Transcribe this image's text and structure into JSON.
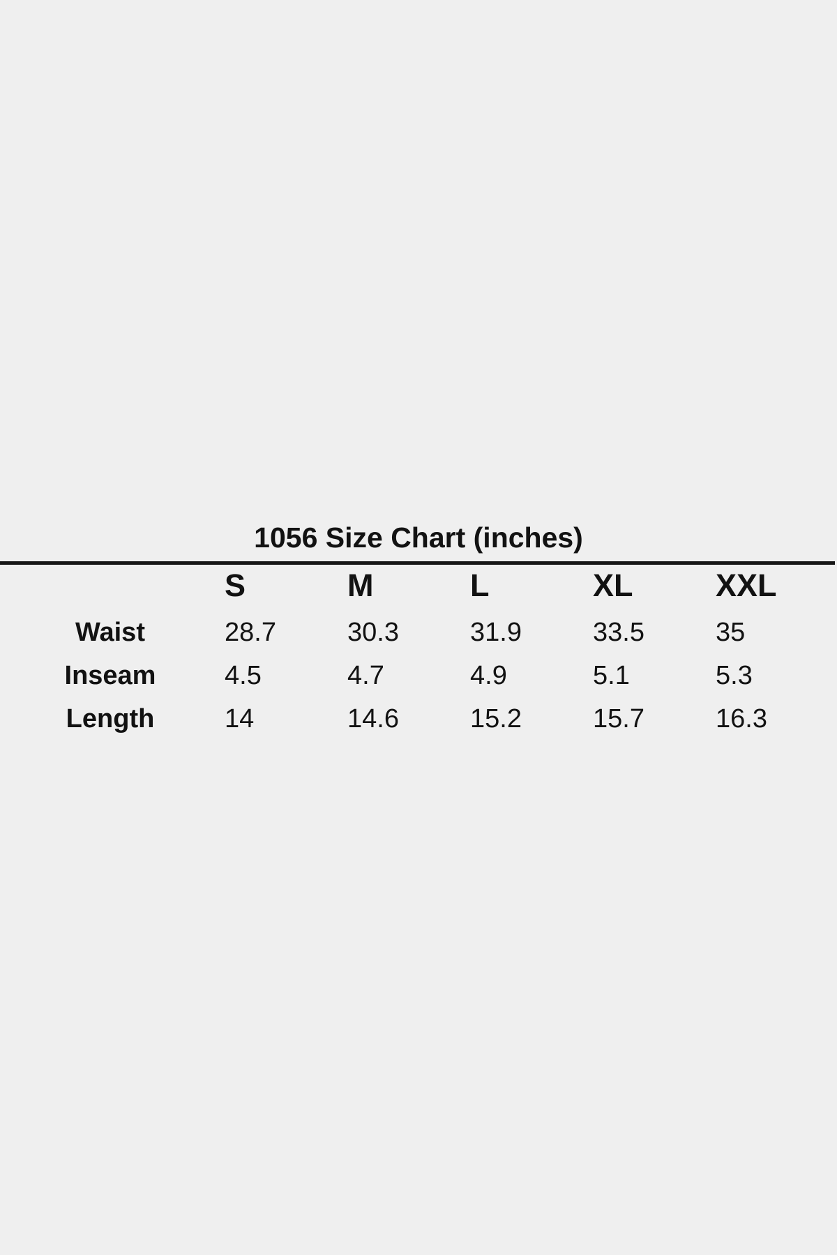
{
  "page": {
    "background_color": "#efefef",
    "text_color": "#121212"
  },
  "chart_data": {
    "type": "table",
    "title": "1056 Size Chart (inches)",
    "unit": "inches",
    "columns": [
      "S",
      "M",
      "L",
      "XL",
      "XXL"
    ],
    "rows": [
      {
        "label": "Waist",
        "values": [
          "28.7",
          "30.3",
          "31.9",
          "33.5",
          "35"
        ]
      },
      {
        "label": "Inseam",
        "values": [
          "4.5",
          "4.7",
          "4.9",
          "5.1",
          "5.3"
        ]
      },
      {
        "label": "Length",
        "values": [
          "14",
          "14.6",
          "15.2",
          "15.7",
          "16.3"
        ]
      }
    ],
    "layout": {
      "legend": "none",
      "grid": "single horizontal rule under title",
      "value_alignment": "left",
      "label_alignment": "center"
    }
  }
}
